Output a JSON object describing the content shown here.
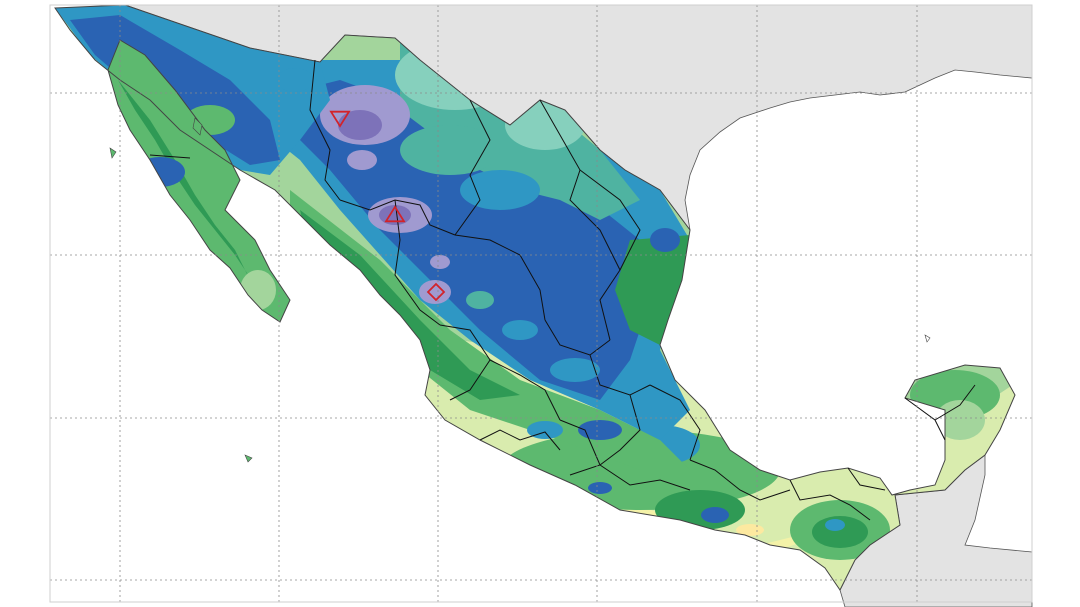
{
  "map": {
    "colors": {
      "background": "#ffffff",
      "neighbor_land": "#e3e3e3",
      "grid_line": "#8a8a8a",
      "coast": "#555555",
      "state_border": "#111111",
      "marker": "#d2232a",
      "ramp": [
        "#fde9a0",
        "#f4f2a8",
        "#d9ecae",
        "#a3d59c",
        "#5db96f",
        "#2f9a55",
        "#4fb3a1",
        "#2f97c4",
        "#2a63b3",
        "#a09ad0",
        "#7d72b9"
      ]
    },
    "markers": [
      {
        "shape": "triangle-down-icon"
      },
      {
        "shape": "triangle-up-icon"
      },
      {
        "shape": "diamond-icon"
      }
    ]
  }
}
